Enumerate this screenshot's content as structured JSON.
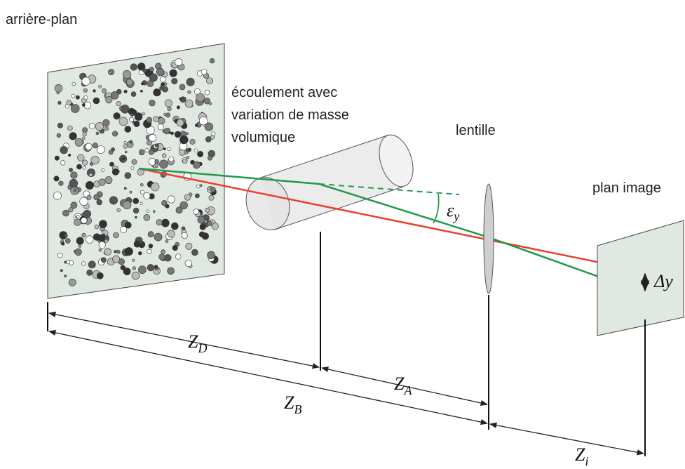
{
  "labels": {
    "background": "arrière-plan",
    "flow": [
      "écoulement avec",
      "variation de masse",
      "volumique"
    ],
    "lens": "lentille",
    "image_plane": "plan image"
  },
  "symbols": {
    "z_d": {
      "base": "Z",
      "sub": "D"
    },
    "z_a": {
      "base": "Z",
      "sub": "A"
    },
    "z_b": {
      "base": "Z",
      "sub": "B"
    },
    "z_i": {
      "base": "Z",
      "sub": "i"
    },
    "epsilon": {
      "base": "ε",
      "sub": "y"
    },
    "delta_y": "Δy"
  }
}
